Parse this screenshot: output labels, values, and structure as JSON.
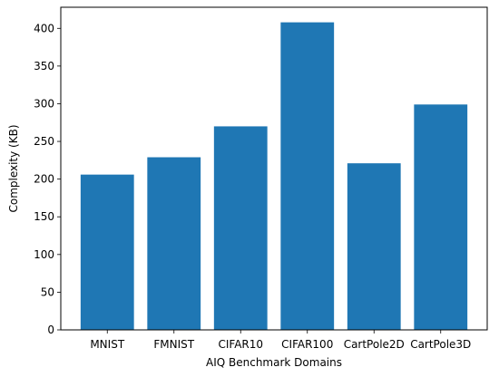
{
  "chart_data": {
    "type": "bar",
    "categories": [
      "MNIST",
      "FMNIST",
      "CIFAR10",
      "CIFAR100",
      "CartPole2D",
      "CartPole3D"
    ],
    "series": [
      {
        "values": [
          206,
          229,
          270,
          408,
          221,
          299
        ]
      }
    ],
    "xlabel": "AIQ Benchmark Domains",
    "ylabel": "Complexity (KB)",
    "ylim": [
      0,
      428
    ],
    "yticks": [
      0,
      50,
      100,
      150,
      200,
      250,
      300,
      350,
      400
    ],
    "grid": false,
    "legend": "none",
    "bar_color": "#1f77b4"
  }
}
